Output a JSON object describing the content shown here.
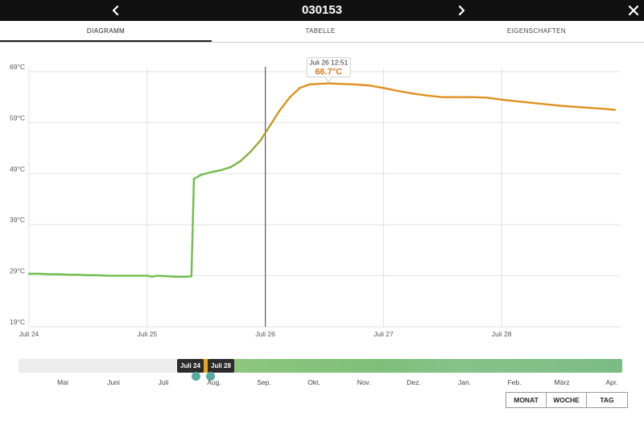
{
  "header": {
    "title": "030153",
    "prev_icon": "chevron-left-icon",
    "next_icon": "chevron-right-icon",
    "close_icon": "close-icon"
  },
  "tabs": [
    {
      "label": "DIAGRAMM",
      "active": true
    },
    {
      "label": "TABELLE",
      "active": false
    },
    {
      "label": "EIGENSCHAFTEN",
      "active": false
    }
  ],
  "tooltip": {
    "time": "Juli 26 12:51",
    "value": "66.7°C",
    "color": "#d97a1f"
  },
  "chart_data": {
    "type": "line",
    "title": "",
    "xlabel": "",
    "ylabel": "",
    "y_unit": "°C",
    "ylim": [
      19,
      69
    ],
    "yticks": [
      "69°C",
      "59°C",
      "49°C",
      "39°C",
      "29°C",
      "19°C"
    ],
    "xlim": [
      "2024-07-24 00:00",
      "2024-07-29 00:00"
    ],
    "xticks": [
      "Juli 24",
      "Juli 25",
      "Juli 26",
      "Juli 27",
      "Juli 28"
    ],
    "grid": true,
    "cursor_x": "2024-07-26 00:00",
    "colors": {
      "cool": "#6fbd4c",
      "warm": "#e0901f"
    },
    "series": [
      {
        "x": [
          "2024-07-24 00:00",
          "2024-07-24 02:00",
          "2024-07-24 04:00",
          "2024-07-24 06:00",
          "2024-07-24 08:00",
          "2024-07-24 10:00",
          "2024-07-24 12:00",
          "2024-07-24 14:00",
          "2024-07-24 16:00",
          "2024-07-24 18:00",
          "2024-07-24 20:00",
          "2024-07-24 22:00",
          "2024-07-25 00:00",
          "2024-07-25 01:00",
          "2024-07-25 02:00",
          "2024-07-25 04:00",
          "2024-07-25 06:00",
          "2024-07-25 08:00",
          "2024-07-25 09:00",
          "2024-07-25 09:30",
          "2024-07-25 11:00",
          "2024-07-25 13:00",
          "2024-07-25 15:00",
          "2024-07-25 17:00",
          "2024-07-25 19:00",
          "2024-07-25 21:00",
          "2024-07-25 23:00",
          "2024-07-26 01:00",
          "2024-07-26 03:00",
          "2024-07-26 05:00",
          "2024-07-26 07:00",
          "2024-07-26 09:00",
          "2024-07-26 11:00",
          "2024-07-26 12:51",
          "2024-07-26 15:00",
          "2024-07-26 18:00",
          "2024-07-26 21:00",
          "2024-07-27 00:00",
          "2024-07-27 03:00",
          "2024-07-27 06:00",
          "2024-07-27 09:00",
          "2024-07-27 12:00",
          "2024-07-27 15:00",
          "2024-07-27 18:00",
          "2024-07-27 21:00",
          "2024-07-28 00:00",
          "2024-07-28 03:00",
          "2024-07-28 06:00",
          "2024-07-28 09:00",
          "2024-07-28 12:00",
          "2024-07-28 15:00",
          "2024-07-28 18:00",
          "2024-07-28 21:00",
          "2024-07-28 23:00"
        ],
        "y": [
          29.4,
          29.4,
          29.3,
          29.3,
          29.2,
          29.2,
          29.1,
          29.1,
          29.0,
          29.0,
          29.0,
          29.0,
          29.0,
          28.8,
          29.0,
          28.9,
          28.8,
          28.8,
          28.9,
          48.0,
          48.8,
          49.3,
          49.7,
          50.3,
          51.5,
          53.3,
          55.5,
          58.5,
          61.5,
          64.0,
          65.8,
          66.5,
          66.6,
          66.7,
          66.6,
          66.5,
          66.3,
          65.8,
          65.2,
          64.7,
          64.3,
          64.0,
          64.0,
          64.0,
          63.9,
          63.5,
          63.2,
          62.9,
          62.6,
          62.3,
          62.1,
          61.9,
          61.7,
          61.5
        ]
      }
    ]
  },
  "navigator": {
    "months": [
      "Mai",
      "Juni",
      "Juli",
      "Aug.",
      "Sep.",
      "Okt.",
      "Nov.",
      "Dez.",
      "Jan.",
      "Feb.",
      "März",
      "Apr."
    ],
    "start_label": "Juli 24",
    "end_label": "Juli 28"
  },
  "range_buttons": [
    "MONAT",
    "WOCHE",
    "TAG"
  ]
}
